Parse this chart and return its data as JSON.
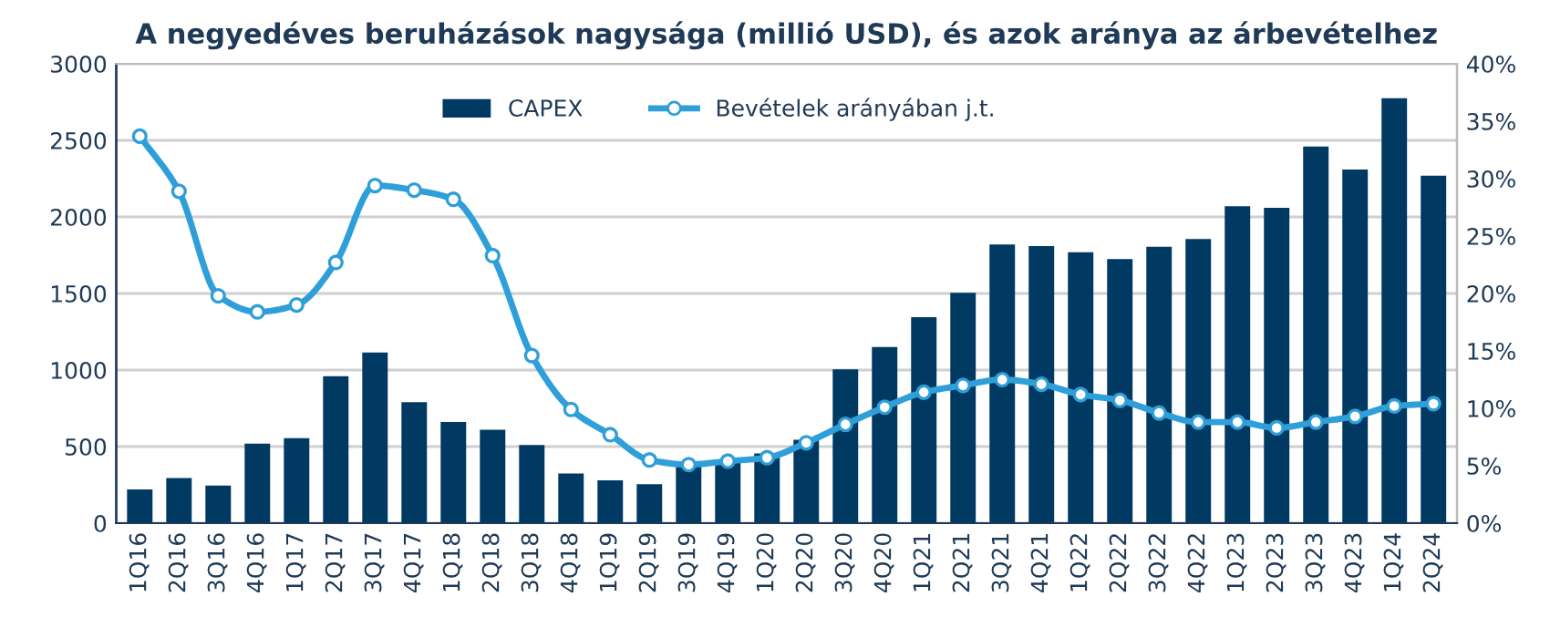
{
  "chart_data": {
    "type": "bar",
    "title": "A negyedéves beruházások nagysága (millió USD), és azok aránya az árbevételhez",
    "categories": [
      "1Q16",
      "2Q16",
      "3Q16",
      "4Q16",
      "1Q17",
      "2Q17",
      "3Q17",
      "4Q17",
      "1Q18",
      "2Q18",
      "3Q18",
      "4Q18",
      "1Q19",
      "2Q19",
      "3Q19",
      "4Q19",
      "1Q20",
      "2Q20",
      "3Q20",
      "4Q20",
      "1Q21",
      "2Q21",
      "3Q21",
      "4Q21",
      "1Q22",
      "2Q22",
      "3Q22",
      "4Q22",
      "1Q23",
      "2Q23",
      "3Q23",
      "4Q23",
      "1Q24",
      "2Q24"
    ],
    "series": [
      {
        "name": "CAPEX",
        "color": "#003a63",
        "values": [
          220,
          295,
          245,
          520,
          555,
          960,
          1115,
          790,
          660,
          610,
          510,
          325,
          280,
          255,
          385,
          410,
          455,
          545,
          1005,
          1150,
          1345,
          1505,
          1820,
          1810,
          1770,
          1725,
          1805,
          1855,
          2070,
          2060,
          2460,
          2310,
          2775,
          2270
        ]
      },
      {
        "name": "Bevételek arányában j.t.",
        "type": "line",
        "axis": "y2",
        "color": "#2e9fd8",
        "marker": "circle",
        "line_style": "solid",
        "values": [
          33.7,
          28.9,
          19.8,
          18.4,
          19.0,
          22.7,
          29.4,
          29.0,
          28.2,
          23.3,
          14.6,
          9.9,
          7.7,
          5.5,
          5.1,
          5.4,
          5.7,
          7.0,
          8.6,
          10.1,
          11.4,
          12.0,
          12.5,
          12.1,
          11.2,
          10.7,
          9.6,
          8.8,
          8.8,
          8.3,
          8.8,
          9.3,
          10.2,
          10.4
        ]
      }
    ],
    "ylim": [
      0,
      3000
    ],
    "yticks": [
      0,
      500,
      1000,
      1500,
      2000,
      2500,
      3000
    ],
    "y2lim": [
      0,
      40
    ],
    "y2ticks": [
      {
        "value": 0,
        "label": "0%"
      },
      {
        "value": 5,
        "label": "5%"
      },
      {
        "value": 10,
        "label": "10%"
      },
      {
        "value": 15,
        "label": "15%"
      },
      {
        "value": 20,
        "label": "20%"
      },
      {
        "value": 25,
        "label": "25%"
      },
      {
        "value": 30,
        "label": "30%"
      },
      {
        "value": 35,
        "label": "35%"
      },
      {
        "value": 40,
        "label": "40%"
      }
    ],
    "grid": "y",
    "legend": "top"
  }
}
